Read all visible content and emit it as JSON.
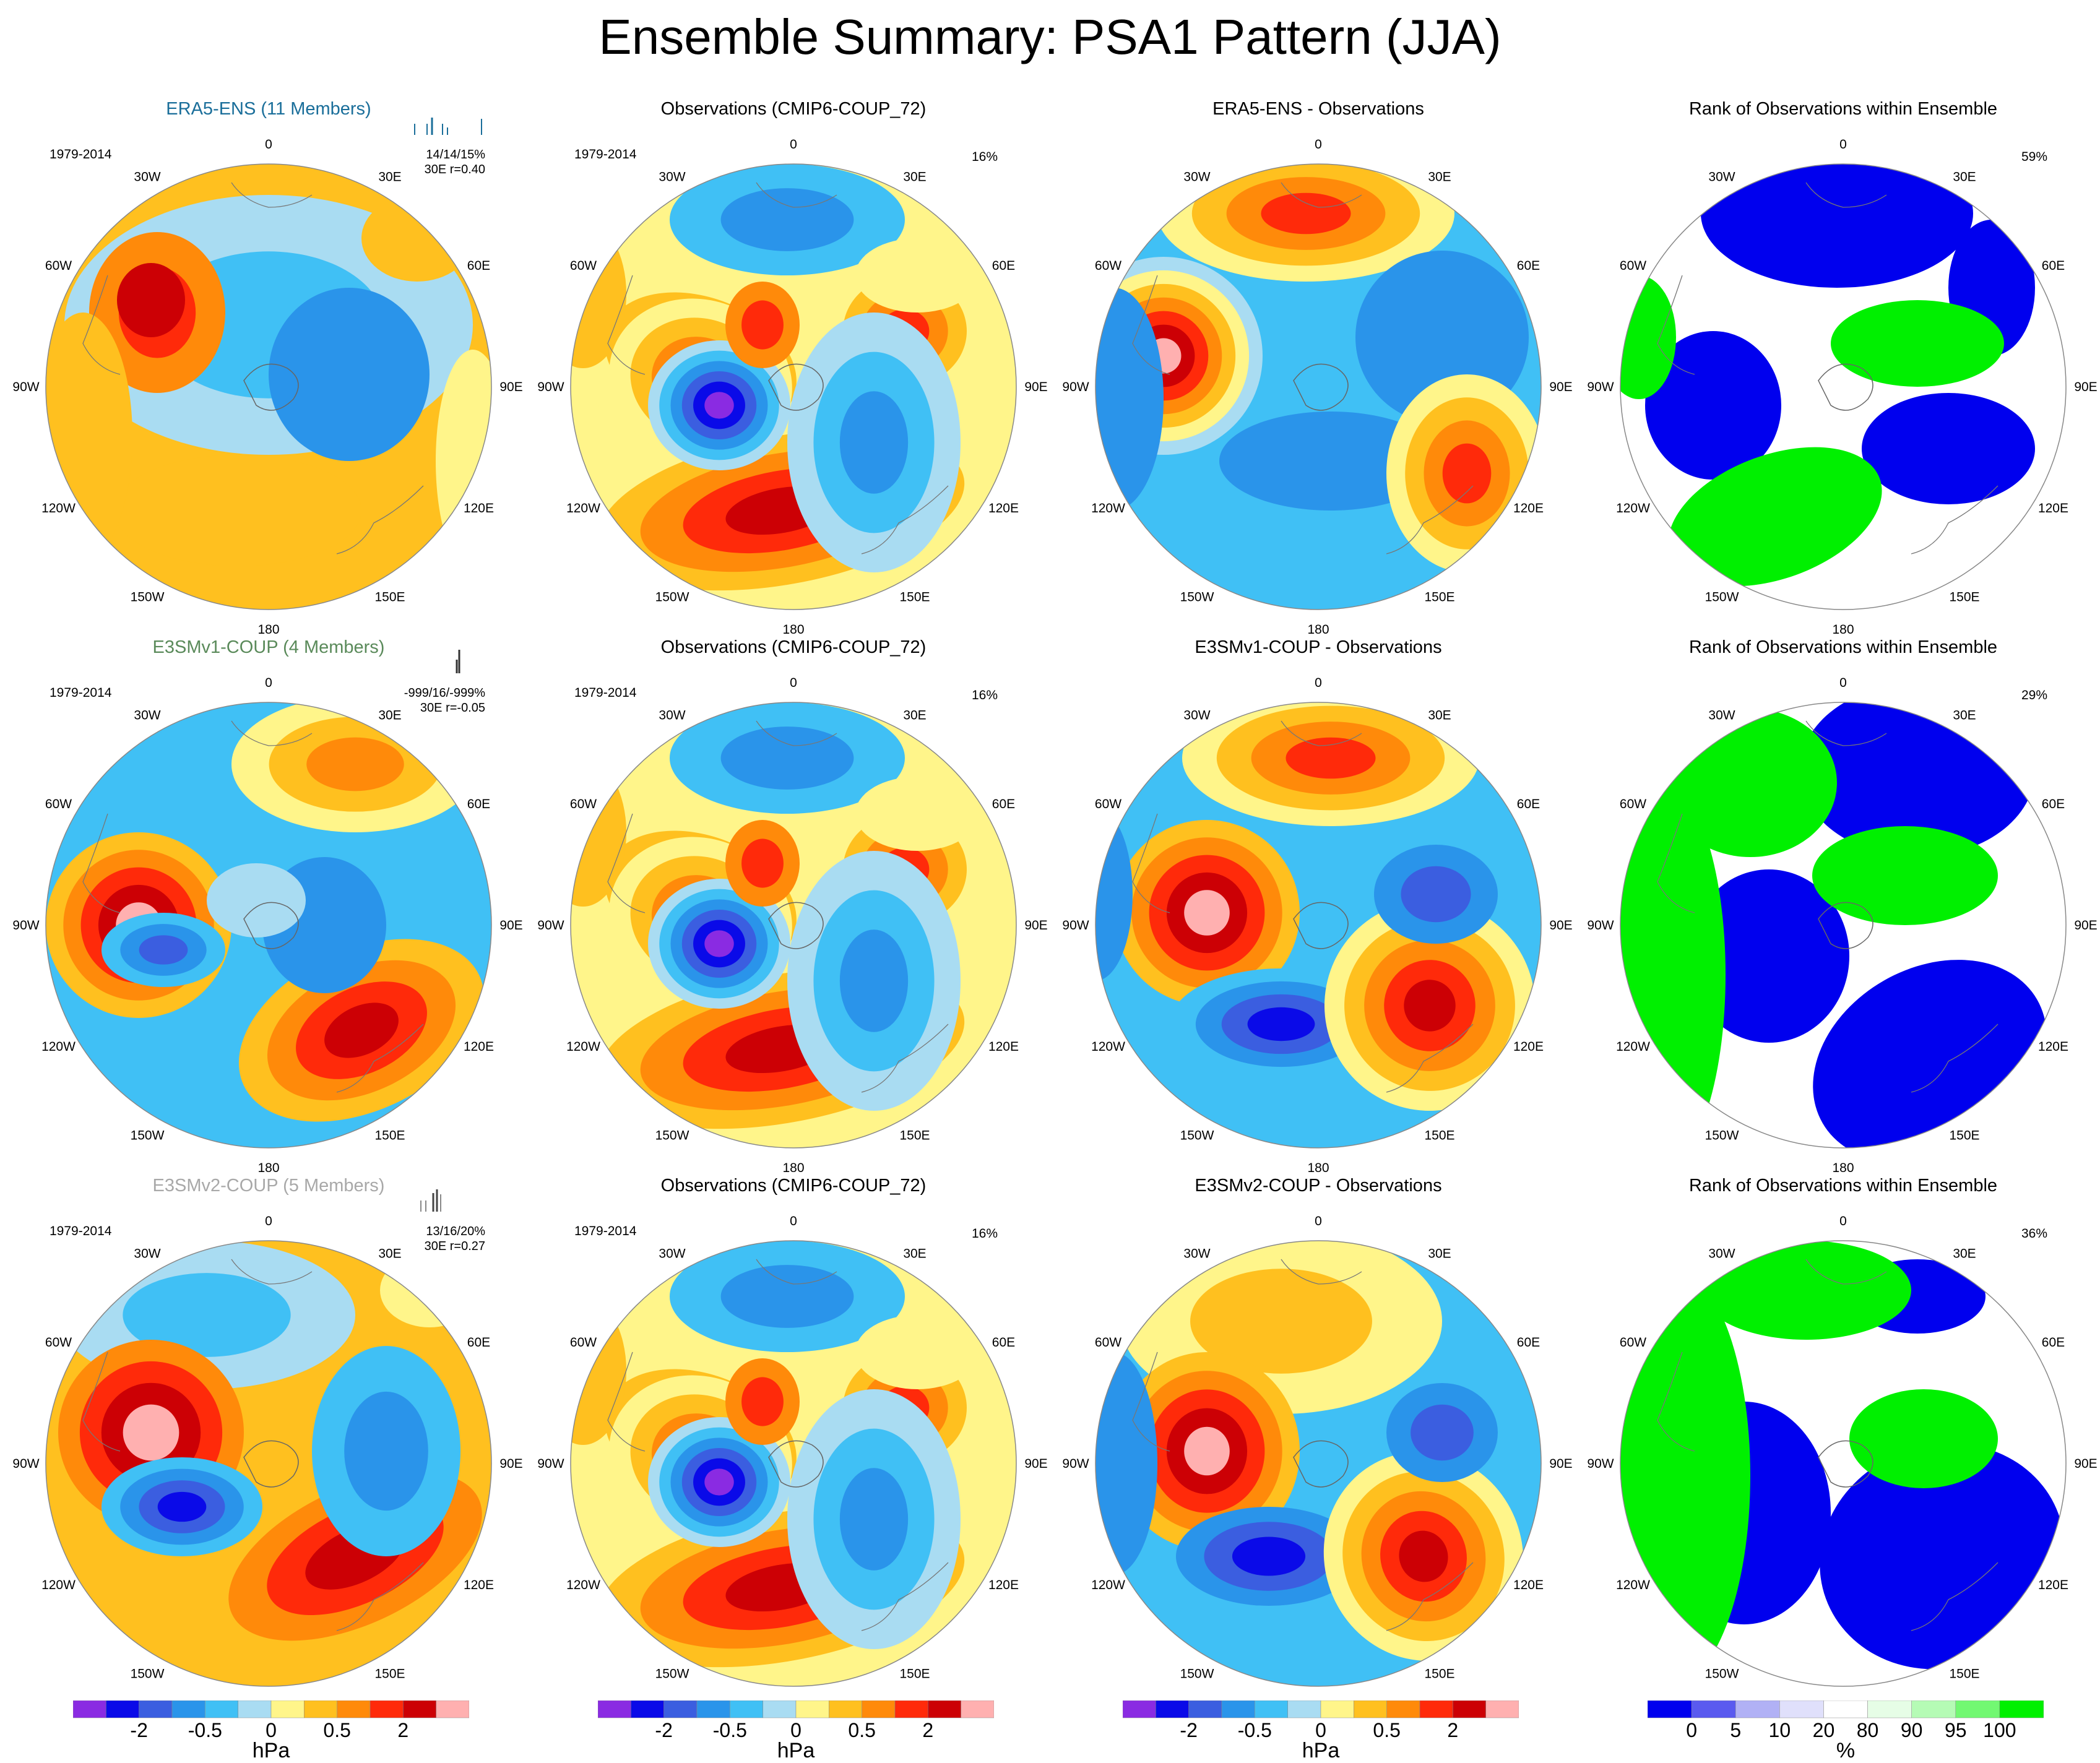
{
  "title": "Ensemble Summary: PSA1 Pattern (JJA)",
  "colors": {
    "anomaly_scale": [
      "#8a2be2",
      "#0a0ae8",
      "#3b5ee0",
      "#2a94ea",
      "#40c0f5",
      "#a9dcf2",
      "#fff58a",
      "#ffc01f",
      "#ff8a0a",
      "#ff2a0a",
      "#cc0005",
      "#ffb0b0"
    ],
    "rank_scale": [
      "#0000ee",
      "#5a5aef",
      "#b1b1f5",
      "#e0e0fb",
      "#ffffff",
      "#e6fde6",
      "#b5fbb5",
      "#72f872",
      "#00f000"
    ],
    "ens_colors": [
      "#1a6e9a",
      "#5a8a5a",
      "#a8a8a8"
    ]
  },
  "longitude_labels": [
    "0",
    "30E",
    "60E",
    "90E",
    "120E",
    "150E",
    "180",
    "150W",
    "120W",
    "90W",
    "60W",
    "30W"
  ],
  "rows": [
    {
      "ensemble": {
        "title": "ERA5-ENS (11 Members)",
        "period": "1979-2014",
        "stats_line1": "14/14/15%",
        "stats_line2": "r=0.40",
        "stats_prefix": "30E"
      },
      "obs": {
        "title": "Observations (CMIP6-COUP_72)",
        "period": "1979-2014",
        "pct": "16%"
      },
      "diff": {
        "title": "ERA5-ENS - Observations"
      },
      "rank": {
        "title": "Rank of Observations within Ensemble",
        "pct": "59%"
      }
    },
    {
      "ensemble": {
        "title": "E3SMv1-COUP (4 Members)",
        "period": "1979-2014",
        "stats_line1": "-999/16/-999%",
        "stats_line2": "r=-0.05",
        "stats_prefix": "30E"
      },
      "obs": {
        "title": "Observations (CMIP6-COUP_72)",
        "period": "1979-2014",
        "pct": "16%"
      },
      "diff": {
        "title": "E3SMv1-COUP - Observations"
      },
      "rank": {
        "title": "Rank of Observations within Ensemble",
        "pct": "29%"
      }
    },
    {
      "ensemble": {
        "title": "E3SMv2-COUP (5 Members)",
        "period": "1979-2014",
        "stats_line1": "13/16/20%",
        "stats_line2": "r=0.27",
        "stats_prefix": "30E"
      },
      "obs": {
        "title": "Observations (CMIP6-COUP_72)",
        "period": "1979-2014",
        "pct": "16%"
      },
      "diff": {
        "title": "E3SMv2-COUP - Observations"
      },
      "rank": {
        "title": "Rank of Observations within Ensemble",
        "pct": "36%"
      }
    }
  ],
  "colorbar_anomaly": {
    "tick_labels": [
      "-2",
      "-0.5",
      "0",
      "0.5",
      "2"
    ],
    "unit": "hPa"
  },
  "colorbar_rank": {
    "tick_labels": [
      "0",
      "5",
      "10",
      "20",
      "80",
      "90",
      "95",
      "100"
    ],
    "unit": "%"
  }
}
